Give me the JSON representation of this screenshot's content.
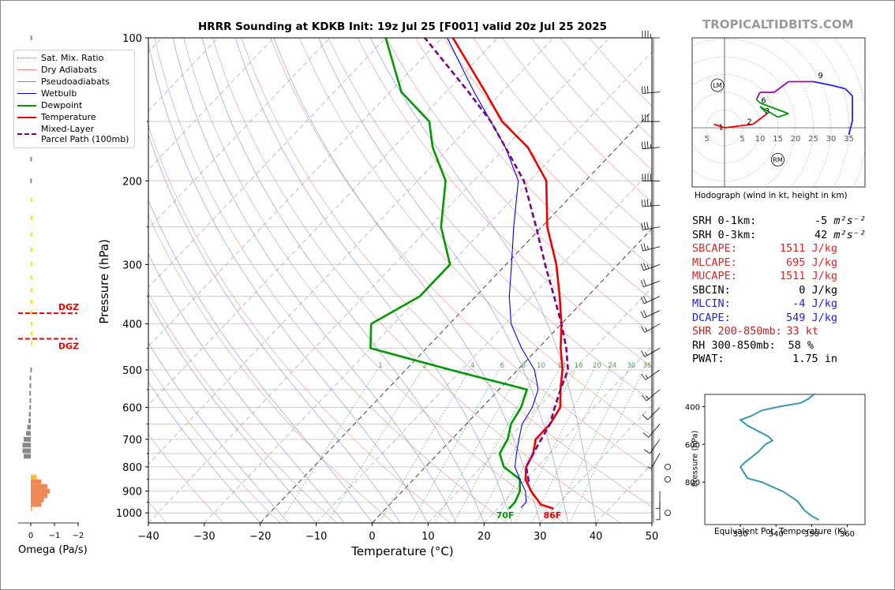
{
  "title": "HRRR Sounding at KDKB Init: 19z Jul 25 [F001] valid 20z Jul 25 2025",
  "brand": "TROPICALTIDBITS.COM",
  "axes": {
    "xlabel": "Temperature (°C)",
    "ylabel": "Pressure (hPa)",
    "xticks": [
      "−40",
      "−30",
      "−20",
      "−10",
      "0",
      "10",
      "20",
      "30",
      "40",
      "50"
    ],
    "yticks": [
      "100",
      "200",
      "300",
      "400",
      "500",
      "600",
      "700",
      "800",
      "900",
      "1000"
    ]
  },
  "legend": [
    {
      "label": "Sat. Mix. Ratio",
      "color": "#4a9a4a",
      "style": "dotted"
    },
    {
      "label": "Dry Adiabats",
      "color": "#e06060",
      "style": "thin"
    },
    {
      "label": "Pseudoadiabats",
      "color": "#6060d0",
      "style": "thin"
    },
    {
      "label": "Wetbulb",
      "color": "#0000ee",
      "style": "solid"
    },
    {
      "label": "Dewpoint",
      "color": "#009900",
      "style": "bold"
    },
    {
      "label": "Temperature",
      "color": "#ee0000",
      "style": "bold"
    },
    {
      "label": "Mixed-Layer\nParcel Path (100mb)",
      "color": "#800080",
      "style": "dashed"
    }
  ],
  "surface_labels": {
    "dewpoint": "70F",
    "temperature": "86F"
  },
  "mixing_ratio_labels": [
    "1",
    "2",
    "4",
    "6",
    "8",
    "10",
    "13",
    "16",
    "20",
    "24",
    "30",
    "36"
  ],
  "omega": {
    "xlabel": "Omega (Pa/s)",
    "xticks": [
      "0",
      "−1",
      "−2"
    ],
    "dgz_label": "DGZ"
  },
  "hodograph": {
    "caption": "Hodograph (wind in kt, height in km)",
    "ticks": [
      "5",
      "5",
      "10",
      "15",
      "20",
      "25",
      "30",
      "35"
    ],
    "height_labels": [
      "1",
      "2",
      "3",
      "6",
      "9"
    ],
    "markers": [
      "LM",
      "RM"
    ]
  },
  "stats": [
    {
      "label": "SRH 0-1km:",
      "value": "-5",
      "unit": "m²s⁻²",
      "color": "#000000"
    },
    {
      "label": "SRH 0-3km:",
      "value": "42",
      "unit": "m²s⁻²",
      "color": "#000000"
    },
    {
      "label": "SBCAPE:",
      "value": "1511 J/kg",
      "unit": "",
      "color": "#d62728"
    },
    {
      "label": "MLCAPE:",
      "value": "695 J/kg",
      "unit": "",
      "color": "#d62728"
    },
    {
      "label": "MUCAPE:",
      "value": "1511 J/kg",
      "unit": "",
      "color": "#d62728"
    },
    {
      "label": "SBCIN:",
      "value": "0 J/kg",
      "unit": "",
      "color": "#000000"
    },
    {
      "label": "MLCIN:",
      "value": "-4 J/kg",
      "unit": "",
      "color": "#1f1fd6"
    },
    {
      "label": "DCAPE:",
      "value": "549 J/kg",
      "unit": "",
      "color": "#1f1fd6"
    },
    {
      "label": "SHR 200-850mb:",
      "value": "33 kt",
      "unit": "",
      "color": "#c02020"
    },
    {
      "label": "RH 300-850mb:",
      "value": "58 %",
      "unit": "",
      "color": "#000000"
    },
    {
      "label": "PWAT:",
      "value": "1.75 in",
      "unit": "",
      "color": "#000000"
    }
  ],
  "theta_e_panel": {
    "xlabel": "Equivalent Pot. Temperature (K)",
    "ylabel": "Pressure (hPa)",
    "xticks": [
      "330",
      "340",
      "350",
      "360"
    ],
    "yticks": [
      "400",
      "600",
      "800"
    ]
  },
  "chart_data": {
    "type": "line",
    "title": "HRRR Sounding at KDKB Init: 19z Jul 25 [F001] valid 20z Jul 25 2025",
    "xlabel": "Temperature (°C)",
    "ylabel": "Pressure (hPa)",
    "xlim": [
      -40,
      50
    ],
    "ylim": [
      1050,
      100
    ],
    "log_y": true,
    "skew": true,
    "series": [
      {
        "name": "Temperature",
        "color": "#ee0000",
        "points": [
          [
            980,
            30
          ],
          [
            960,
            27
          ],
          [
            900,
            23
          ],
          [
            850,
            20
          ],
          [
            800,
            18
          ],
          [
            750,
            17
          ],
          [
            700,
            15
          ],
          [
            650,
            15
          ],
          [
            600,
            14
          ],
          [
            550,
            11
          ],
          [
            500,
            8
          ],
          [
            450,
            4
          ],
          [
            400,
            0
          ],
          [
            350,
            -5
          ],
          [
            300,
            -11
          ],
          [
            250,
            -19
          ],
          [
            200,
            -27
          ],
          [
            170,
            -36
          ],
          [
            150,
            -45
          ],
          [
            130,
            -53
          ],
          [
            100,
            -68
          ]
        ]
      },
      {
        "name": "Dewpoint",
        "color": "#009900",
        "points": [
          [
            980,
            22
          ],
          [
            950,
            22
          ],
          [
            900,
            21
          ],
          [
            850,
            19
          ],
          [
            800,
            14
          ],
          [
            750,
            11
          ],
          [
            700,
            10
          ],
          [
            650,
            8
          ],
          [
            600,
            7
          ],
          [
            550,
            5
          ],
          [
            500,
            -12
          ],
          [
            450,
            -30
          ],
          [
            400,
            -34
          ],
          [
            350,
            -30
          ],
          [
            300,
            -30
          ],
          [
            250,
            -38
          ],
          [
            200,
            -45
          ],
          [
            170,
            -53
          ],
          [
            150,
            -58
          ],
          [
            130,
            -68
          ],
          [
            100,
            -80
          ]
        ]
      },
      {
        "name": "Wetbulb",
        "color": "#0000ee",
        "points": [
          [
            975,
            24
          ],
          [
            950,
            24
          ],
          [
            900,
            22
          ],
          [
            850,
            19
          ],
          [
            800,
            16
          ],
          [
            750,
            14
          ],
          [
            700,
            12
          ],
          [
            650,
            10
          ],
          [
            600,
            9
          ],
          [
            550,
            7
          ],
          [
            500,
            3
          ],
          [
            450,
            -3
          ],
          [
            400,
            -9
          ],
          [
            350,
            -14
          ],
          [
            300,
            -19
          ],
          [
            250,
            -25
          ],
          [
            200,
            -32
          ],
          [
            170,
            -40
          ],
          [
            150,
            -47
          ],
          [
            130,
            -55
          ],
          [
            100,
            -69
          ]
        ]
      },
      {
        "name": "Mixed-Layer Parcel Path (100mb)",
        "color": "#800080",
        "points": [
          [
            860,
            21
          ],
          [
            800,
            18
          ],
          [
            750,
            17
          ],
          [
            700,
            16
          ],
          [
            650,
            15
          ],
          [
            600,
            13
          ],
          [
            550,
            11
          ],
          [
            500,
            9
          ],
          [
            450,
            5
          ],
          [
            400,
            0
          ],
          [
            350,
            -6
          ],
          [
            300,
            -13
          ],
          [
            250,
            -21
          ],
          [
            200,
            -31
          ],
          [
            170,
            -40
          ],
          [
            150,
            -47
          ],
          [
            130,
            -56
          ],
          [
            100,
            -73
          ]
        ]
      }
    ],
    "hodograph": {
      "unit": "kt",
      "points": [
        [
          -3,
          1,
          "#ee0000"
        ],
        [
          0,
          0,
          "#ee0000"
        ],
        [
          8,
          1,
          "#ee0000"
        ],
        [
          12,
          4,
          "#ee0000"
        ],
        [
          10,
          6,
          "#009900"
        ],
        [
          15,
          3,
          "#009900"
        ],
        [
          18,
          4,
          "#009900"
        ],
        [
          10,
          7,
          "#009900"
        ],
        [
          9,
          8,
          "#009900"
        ],
        [
          10,
          10,
          "#aa00aa"
        ],
        [
          14,
          10,
          "#aa00aa"
        ],
        [
          18,
          13,
          "#aa00aa"
        ],
        [
          25,
          13,
          "#aa00aa"
        ],
        [
          30,
          12,
          "#2222ee"
        ],
        [
          34,
          11,
          "#2222ee"
        ],
        [
          36,
          9,
          "#2222ee"
        ],
        [
          36,
          2,
          "#2222ee"
        ],
        [
          35,
          -2,
          "#2222ee"
        ]
      ],
      "lm": [
        -2,
        12
      ],
      "rm": [
        15,
        -9
      ]
    },
    "theta_e_profile": {
      "points": [
        [
          352,
          1000
        ],
        [
          350,
          980
        ],
        [
          348,
          950
        ],
        [
          346,
          900
        ],
        [
          342,
          850
        ],
        [
          336,
          800
        ],
        [
          332,
          780
        ],
        [
          331,
          750
        ],
        [
          330,
          720
        ],
        [
          331,
          700
        ],
        [
          333,
          670
        ],
        [
          335,
          640
        ],
        [
          337,
          600
        ],
        [
          339,
          580
        ],
        [
          338,
          560
        ],
        [
          336,
          540
        ],
        [
          332,
          500
        ],
        [
          330,
          470
        ],
        [
          333,
          450
        ],
        [
          336,
          420
        ],
        [
          341,
          400
        ],
        [
          347,
          380
        ],
        [
          349,
          360
        ],
        [
          351,
          330
        ]
      ]
    },
    "omega_bars": {
      "points": [
        [
          980,
          -0.05
        ],
        [
          960,
          -0.45
        ],
        [
          940,
          -0.55
        ],
        [
          920,
          -0.7
        ],
        [
          900,
          -0.8
        ],
        [
          880,
          -0.7
        ],
        [
          860,
          -0.45
        ],
        [
          840,
          -0.25
        ],
        [
          760,
          0.3
        ],
        [
          740,
          0.35
        ],
        [
          720,
          0.35
        ],
        [
          700,
          0.3
        ],
        [
          680,
          0.2
        ],
        [
          660,
          0.15
        ],
        [
          640,
          0.1
        ],
        [
          620,
          0.08
        ],
        [
          600,
          0.06
        ],
        [
          580,
          0.05
        ],
        [
          560,
          0.06
        ],
        [
          540,
          0.05
        ],
        [
          520,
          0.05
        ],
        [
          500,
          0.02
        ],
        [
          440,
          -0.05
        ],
        [
          420,
          -0.05
        ],
        [
          400,
          -0.02
        ],
        [
          380,
          -0.02
        ],
        [
          360,
          -0.02
        ],
        [
          340,
          -0.02
        ],
        [
          320,
          -0.02
        ],
        [
          300,
          -0.02
        ],
        [
          280,
          -0.02
        ],
        [
          260,
          -0.02
        ],
        [
          240,
          0.0
        ],
        [
          220,
          0.0
        ],
        [
          200,
          0.02
        ],
        [
          180,
          0.02
        ],
        [
          160,
          0.01
        ],
        [
          140,
          0.01
        ],
        [
          120,
          0.01
        ],
        [
          100,
          0.01
        ]
      ],
      "dgz_hpa": [
        380,
        430
      ]
    },
    "wind_barbs": {
      "unit": "kt",
      "points": [
        [
          100,
          35,
          270
        ],
        [
          130,
          30,
          265
        ],
        [
          150,
          30,
          270
        ],
        [
          170,
          35,
          265
        ],
        [
          200,
          40,
          270
        ],
        [
          225,
          35,
          265
        ],
        [
          250,
          30,
          260
        ],
        [
          275,
          25,
          255
        ],
        [
          300,
          25,
          250
        ],
        [
          325,
          20,
          250
        ],
        [
          350,
          20,
          245
        ],
        [
          375,
          20,
          245
        ],
        [
          400,
          15,
          240
        ],
        [
          450,
          15,
          240
        ],
        [
          500,
          15,
          235
        ],
        [
          550,
          15,
          230
        ],
        [
          600,
          10,
          225
        ],
        [
          650,
          10,
          220
        ],
        [
          700,
          10,
          215
        ],
        [
          750,
          5,
          210
        ],
        [
          800,
          0,
          0
        ],
        [
          850,
          0,
          0
        ],
        [
          900,
          5,
          180
        ],
        [
          950,
          5,
          180
        ],
        [
          1000,
          0,
          0
        ]
      ]
    }
  }
}
